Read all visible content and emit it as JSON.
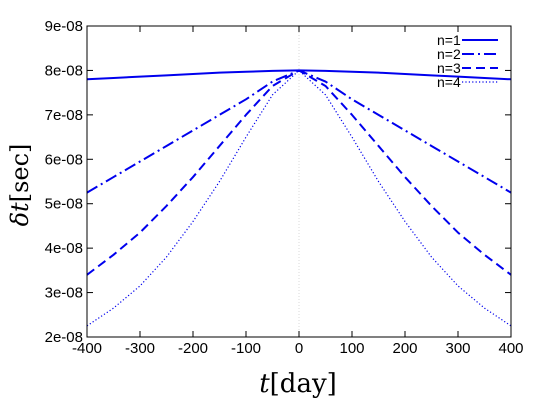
{
  "chart_data": {
    "type": "line",
    "xlabel_var": "t",
    "xlabel_unit": "[day]",
    "ylabel_var": "δt",
    "ylabel_unit": "[sec]",
    "xlim": [
      -400,
      400
    ],
    "ylim": [
      2e-08,
      9e-08
    ],
    "x_ticks": [
      -400,
      -300,
      -200,
      -100,
      0,
      100,
      200,
      300,
      400
    ],
    "x_tick_labels": [
      "-400",
      "-300",
      "-200",
      "-100",
      "0",
      "100",
      "200",
      "300",
      "400"
    ],
    "y_ticks": [
      2e-08,
      3e-08,
      4e-08,
      5e-08,
      6e-08,
      7e-08,
      8e-08,
      9e-08
    ],
    "y_tick_labels": [
      "2e-08",
      "3e-08",
      "4e-08",
      "5e-08",
      "6e-08",
      "7e-08",
      "8e-08",
      "9e-08"
    ],
    "grid": false,
    "legend_position": "top-right",
    "line_color": "#0000ee",
    "x": [
      -400,
      -350,
      -300,
      -250,
      -200,
      -150,
      -100,
      -50,
      0,
      50,
      100,
      150,
      200,
      250,
      300,
      350,
      400
    ],
    "series": [
      {
        "name": "n=1",
        "dash": "solid",
        "values": [
          7.8e-08,
          7.83e-08,
          7.86e-08,
          7.89e-08,
          7.92e-08,
          7.95e-08,
          7.97e-08,
          7.99e-08,
          8e-08,
          7.99e-08,
          7.97e-08,
          7.95e-08,
          7.92e-08,
          7.89e-08,
          7.86e-08,
          7.83e-08,
          7.8e-08
        ]
      },
      {
        "name": "n=2",
        "dash": "dashdot",
        "values": [
          5.25e-08,
          5.6e-08,
          5.95e-08,
          6.3e-08,
          6.65e-08,
          7e-08,
          7.35e-08,
          7.75e-08,
          8e-08,
          7.75e-08,
          7.35e-08,
          7e-08,
          6.65e-08,
          6.3e-08,
          5.95e-08,
          5.6e-08,
          5.25e-08
        ]
      },
      {
        "name": "n=3",
        "dash": "dashed",
        "values": [
          3.4e-08,
          3.85e-08,
          4.35e-08,
          4.95e-08,
          5.6e-08,
          6.3e-08,
          7e-08,
          7.65e-08,
          8e-08,
          7.65e-08,
          7e-08,
          6.3e-08,
          5.6e-08,
          4.95e-08,
          4.35e-08,
          3.85e-08,
          3.4e-08
        ]
      },
      {
        "name": "n=4",
        "dash": "dotted",
        "values": [
          2.25e-08,
          2.65e-08,
          3.15e-08,
          3.8e-08,
          4.6e-08,
          5.5e-08,
          6.5e-08,
          7.45e-08,
          8e-08,
          7.45e-08,
          6.5e-08,
          5.5e-08,
          4.6e-08,
          3.8e-08,
          3.15e-08,
          2.65e-08,
          2.25e-08
        ]
      }
    ]
  }
}
